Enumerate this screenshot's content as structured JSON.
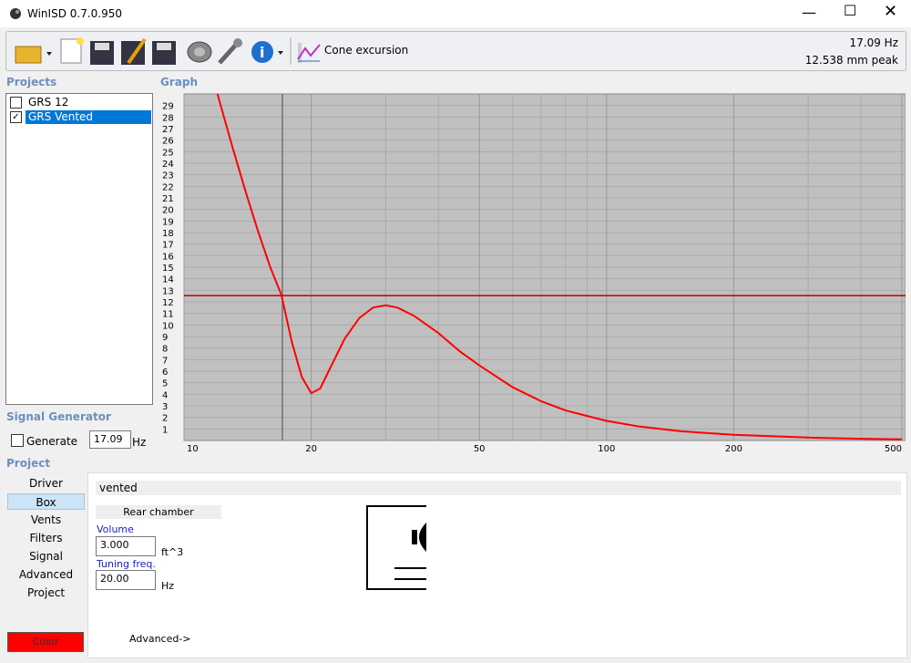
{
  "window": {
    "title": "WinISD 0.7.0.950"
  },
  "toolbar": {
    "graph_button": "Cone excursion",
    "status_freq": "17.09 Hz",
    "status_value": "12.538 mm peak"
  },
  "projects": {
    "title": "Projects",
    "items": [
      {
        "label": "GRS 12",
        "checked": false
      },
      {
        "label": "GRS Vented",
        "checked": true
      }
    ]
  },
  "graph": {
    "title": "Graph"
  },
  "signal_generator": {
    "title": "Signal Generator",
    "generate": "Generate",
    "freq": "17.09",
    "unit": "Hz"
  },
  "project": {
    "title": "Project",
    "tabs": [
      "Driver",
      "Box",
      "Vents",
      "Filters",
      "Signal",
      "Advanced",
      "Project"
    ],
    "selected_tab": 1,
    "color_button": "Color"
  },
  "box": {
    "type": "vented",
    "section": "Rear chamber",
    "volume_label": "Volume",
    "volume": "3.000",
    "volume_unit": "ft^3",
    "tuning_label": "Tuning freq.",
    "tuning": "20.00",
    "tuning_unit": "Hz",
    "advanced": "Advanced->"
  },
  "chart_data": {
    "type": "line",
    "xscale": "log",
    "x": [
      12,
      13,
      14,
      15,
      16,
      17,
      18,
      19,
      20,
      21,
      22,
      24,
      26,
      28,
      30,
      32,
      35,
      40,
      45,
      50,
      60,
      70,
      80,
      100,
      120,
      150,
      200,
      300,
      400,
      500
    ],
    "series": [
      {
        "name": "GRS Vented",
        "color": "#ff0000",
        "values": [
          30,
          25.5,
          21.5,
          18,
          15,
          12.6,
          8.5,
          5.5,
          4.1,
          4.5,
          6,
          8.8,
          10.6,
          11.5,
          11.7,
          11.5,
          10.8,
          9.3,
          7.7,
          6.5,
          4.6,
          3.4,
          2.6,
          1.7,
          1.2,
          0.8,
          0.5,
          0.25,
          0.15,
          0.1
        ]
      }
    ],
    "xlim": [
      10,
      510
    ],
    "xticks": [
      10,
      20,
      50,
      100,
      200,
      500
    ],
    "xgrid_minor": [
      30,
      40,
      60,
      70,
      80,
      90,
      300,
      400
    ],
    "ylim": [
      0,
      30
    ],
    "yticks": [
      1,
      2,
      3,
      4,
      5,
      6,
      7,
      8,
      9,
      10,
      11,
      12,
      13,
      14,
      15,
      16,
      17,
      18,
      19,
      20,
      21,
      22,
      23,
      24,
      25,
      26,
      27,
      28,
      29
    ],
    "grid": true,
    "cursor_x": 17.09,
    "cursor_y": 12.538,
    "cursor_x_color": "#707070",
    "cursor_y_color": "#c00000"
  }
}
